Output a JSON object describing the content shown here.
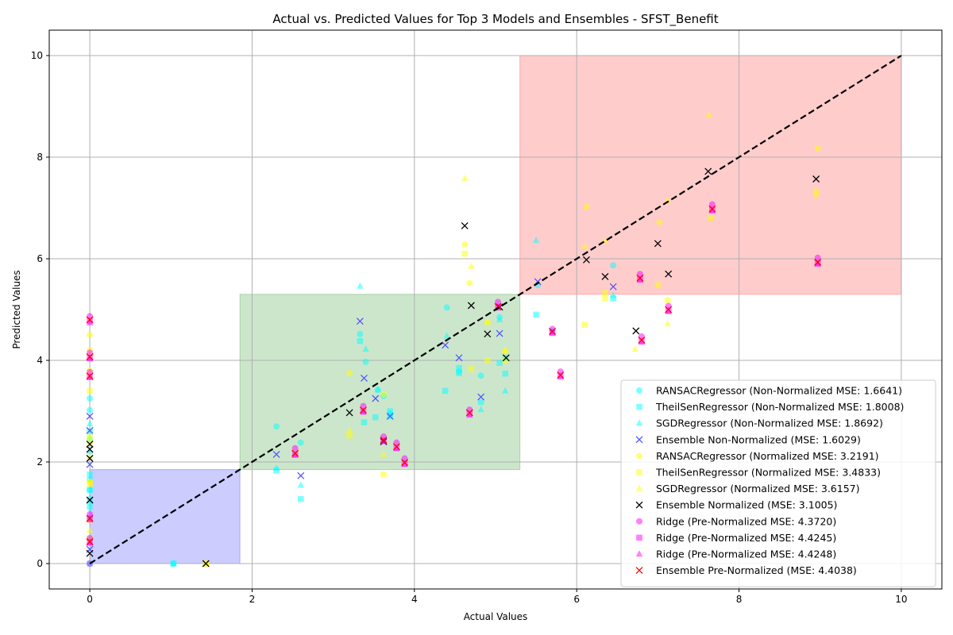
{
  "chart_data": {
    "type": "scatter",
    "title": "Actual vs. Predicted Values for Top 3 Models and Ensembles - SFST_Benefit",
    "xlabel": "Actual Values",
    "ylabel": "Predicted Values",
    "xlim": [
      -0.5,
      10.5
    ],
    "ylim": [
      -0.5,
      10.5
    ],
    "xticks": [
      0,
      2,
      4,
      6,
      8,
      10
    ],
    "yticks": [
      0,
      2,
      4,
      6,
      8,
      10
    ],
    "grid": true,
    "legend_position": "lower-right",
    "identity_line": {
      "from": [
        0,
        0
      ],
      "to": [
        10,
        10
      ],
      "style": "dashed",
      "color": "#000000"
    },
    "regions": [
      {
        "x": [
          0,
          1.85
        ],
        "y": [
          0,
          1.85
        ],
        "color": "#0000ff"
      },
      {
        "x": [
          1.85,
          5.3
        ],
        "y": [
          1.85,
          5.3
        ],
        "color": "#008000"
      },
      {
        "x": [
          5.3,
          10
        ],
        "y": [
          5.3,
          10
        ],
        "color": "#ff0000"
      }
    ],
    "series": [
      {
        "name": "RANSACRegressor (Non-Normalized MSE: 1.6641)",
        "marker": "circle",
        "color": "#00ffff",
        "x": [
          0,
          0,
          0,
          0,
          0,
          0,
          0,
          0,
          1.03,
          2.3,
          2.6,
          3.33,
          3.4,
          3.55,
          3.62,
          3.7,
          4.4,
          4.55,
          4.82,
          5.05,
          5.12,
          5.52,
          5.7,
          6.45
        ],
        "y": [
          3.25,
          3.02,
          2.45,
          1.65,
          1.45,
          1.1,
          0.9,
          0.0,
          0.0,
          2.7,
          2.38,
          4.52,
          3.97,
          3.42,
          3.3,
          2.95,
          5.04,
          3.78,
          3.7,
          4.85,
          4.05,
          5.48,
          4.58,
          5.87
        ]
      },
      {
        "name": "TheilSenRegressor (Non-Normalized MSE: 1.8008)",
        "marker": "square",
        "color": "#00ffff",
        "x": [
          0,
          0,
          0,
          0,
          0,
          1.03,
          2.3,
          2.6,
          3.33,
          3.38,
          3.52,
          3.7,
          3.7,
          4.38,
          4.55,
          4.55,
          4.82,
          5.05,
          5.12,
          5.5,
          6.45
        ],
        "y": [
          2.6,
          1.75,
          1.45,
          1.2,
          0.0,
          0.0,
          1.83,
          1.27,
          4.38,
          2.78,
          2.88,
          3.0,
          2.9,
          3.4,
          3.85,
          3.75,
          3.18,
          3.95,
          3.74,
          4.9,
          5.22
        ]
      },
      {
        "name": "SGDRegressor (Non-Normalized MSE: 1.8692)",
        "marker": "triangle",
        "color": "#00ffff",
        "x": [
          0,
          0,
          0,
          0,
          1.03,
          2.3,
          2.6,
          3.33,
          3.4,
          3.55,
          3.7,
          4.4,
          4.82,
          5.05,
          5.12,
          5.5,
          6.45
        ],
        "y": [
          2.75,
          2.2,
          1.3,
          0.5,
          0.0,
          1.88,
          1.54,
          5.46,
          4.22,
          3.42,
          2.95,
          4.48,
          3.03,
          4.8,
          3.4,
          6.36,
          5.28
        ]
      },
      {
        "name": "Ensemble Non-Normalized (MSE: 1.6029)",
        "marker": "x",
        "color": "#5555ff",
        "x": [
          0,
          0,
          0,
          0,
          2.3,
          2.6,
          3.33,
          3.38,
          3.52,
          3.7,
          4.38,
          4.55,
          4.82,
          5.05,
          5.52,
          6.45
        ],
        "y": [
          2.9,
          2.62,
          1.95,
          0.28,
          2.15,
          1.73,
          4.77,
          3.65,
          3.25,
          2.9,
          4.3,
          4.05,
          3.28,
          4.53,
          5.55,
          5.45
        ]
      },
      {
        "name": "RANSACRegressor (Normalized MSE: 3.2191)",
        "marker": "circle",
        "color": "#ffff00",
        "x": [
          0,
          0,
          0,
          0,
          0,
          0,
          1.43,
          3.2,
          3.62,
          4.62,
          4.68,
          4.9,
          5.12,
          6.12,
          7.02,
          8.97
        ],
        "y": [
          4.5,
          4.2,
          3.8,
          2.5,
          1.6,
          0.85,
          0.0,
          3.75,
          3.33,
          6.28,
          5.52,
          4.75,
          4.18,
          7.02,
          6.72,
          8.17
        ]
      },
      {
        "name": "TheilSenRegressor (Normalized MSE: 3.4833)",
        "marker": "square",
        "color": "#ffff00",
        "x": [
          0,
          0,
          0,
          0,
          1.43,
          3.2,
          3.62,
          4.62,
          4.7,
          4.9,
          5.12,
          6.1,
          6.35,
          6.35,
          7.0,
          7.12,
          7.65,
          8.95
        ],
        "y": [
          3.4,
          2.4,
          1.6,
          0.5,
          0.0,
          2.52,
          1.75,
          6.1,
          3.83,
          4.0,
          4.0,
          4.7,
          5.33,
          5.22,
          5.48,
          5.18,
          6.8,
          7.32
        ]
      },
      {
        "name": "SGDRegressor (Normalized MSE: 3.6157)",
        "marker": "triangle",
        "color": "#ffff00",
        "x": [
          0,
          0,
          0,
          0,
          1.43,
          3.2,
          3.62,
          4.62,
          4.7,
          4.9,
          5.12,
          6.1,
          6.35,
          6.72,
          7.12,
          7.12,
          7.63,
          8.95
        ],
        "y": [
          3.7,
          2.1,
          1.55,
          0.65,
          0.0,
          2.62,
          2.15,
          7.58,
          5.85,
          4.75,
          4.2,
          6.25,
          6.35,
          4.22,
          7.15,
          4.72,
          8.83,
          7.25
        ]
      },
      {
        "name": "Ensemble Normalized (MSE: 3.1005)",
        "marker": "x",
        "color": "#000000",
        "x": [
          0,
          0,
          0,
          0,
          0,
          1.43,
          3.2,
          3.62,
          4.62,
          4.7,
          4.9,
          5.05,
          5.13,
          6.12,
          6.35,
          6.73,
          7.0,
          7.13,
          7.62,
          8.95
        ],
        "y": [
          2.35,
          2.25,
          2.07,
          1.25,
          0.2,
          0.0,
          2.97,
          2.4,
          6.65,
          5.08,
          4.52,
          5.05,
          4.05,
          5.98,
          5.65,
          4.58,
          6.3,
          5.7,
          7.72,
          7.57
        ]
      },
      {
        "name": "Ridge (Pre-Normalized MSE: 4.3720)",
        "marker": "circle",
        "color": "#ff00ff",
        "x": [
          0,
          0,
          0,
          0,
          0,
          0,
          2.53,
          3.37,
          3.62,
          3.78,
          3.88,
          4.68,
          5.03,
          5.7,
          5.8,
          6.78,
          6.8,
          7.13,
          7.67,
          8.97
        ],
        "y": [
          4.87,
          4.15,
          3.77,
          0.97,
          0.5,
          0.0,
          2.27,
          3.1,
          2.5,
          2.38,
          2.07,
          3.03,
          5.15,
          4.62,
          3.78,
          5.7,
          4.47,
          5.07,
          7.07,
          6.02
        ]
      },
      {
        "name": "Ridge (Pre-Normalized MSE: 4.4245)",
        "marker": "square",
        "color": "#ff00ff",
        "x": [
          0,
          0,
          0,
          0,
          0,
          2.53,
          3.37,
          3.62,
          3.78,
          3.88,
          4.68,
          5.03,
          5.7,
          5.8,
          6.78,
          6.8,
          7.13,
          7.67,
          8.97
        ],
        "y": [
          4.78,
          4.05,
          3.68,
          0.88,
          0.42,
          2.15,
          3.0,
          2.42,
          2.28,
          1.97,
          2.95,
          5.05,
          4.55,
          3.7,
          5.6,
          4.38,
          4.98,
          6.97,
          5.92
        ]
      },
      {
        "name": "Ridge (Pre-Normalized MSE: 4.4248)",
        "marker": "triangle",
        "color": "#ff00ff",
        "x": [
          0,
          0,
          0,
          0,
          0,
          2.53,
          3.37,
          3.62,
          3.78,
          3.88,
          4.68,
          5.03,
          5.7,
          5.8,
          6.78,
          6.8,
          7.13,
          7.67,
          8.97
        ],
        "y": [
          4.74,
          4.03,
          3.66,
          0.86,
          0.4,
          2.13,
          2.98,
          2.4,
          2.26,
          1.95,
          2.92,
          5.03,
          4.53,
          3.67,
          5.58,
          4.36,
          4.96,
          6.94,
          5.89
        ]
      },
      {
        "name": "Ensemble Pre-Normalized (MSE: 4.4038)",
        "marker": "x",
        "color": "#ff0000",
        "x": [
          0,
          0,
          0,
          0,
          0,
          2.53,
          3.37,
          3.62,
          3.78,
          3.88,
          4.68,
          5.03,
          5.7,
          5.8,
          6.78,
          6.8,
          7.13,
          7.67,
          8.97
        ],
        "y": [
          4.8,
          4.07,
          3.69,
          0.89,
          0.43,
          2.17,
          3.02,
          2.43,
          2.3,
          1.99,
          2.97,
          5.06,
          4.57,
          3.71,
          5.62,
          4.4,
          5.0,
          6.98,
          5.93
        ]
      }
    ]
  }
}
